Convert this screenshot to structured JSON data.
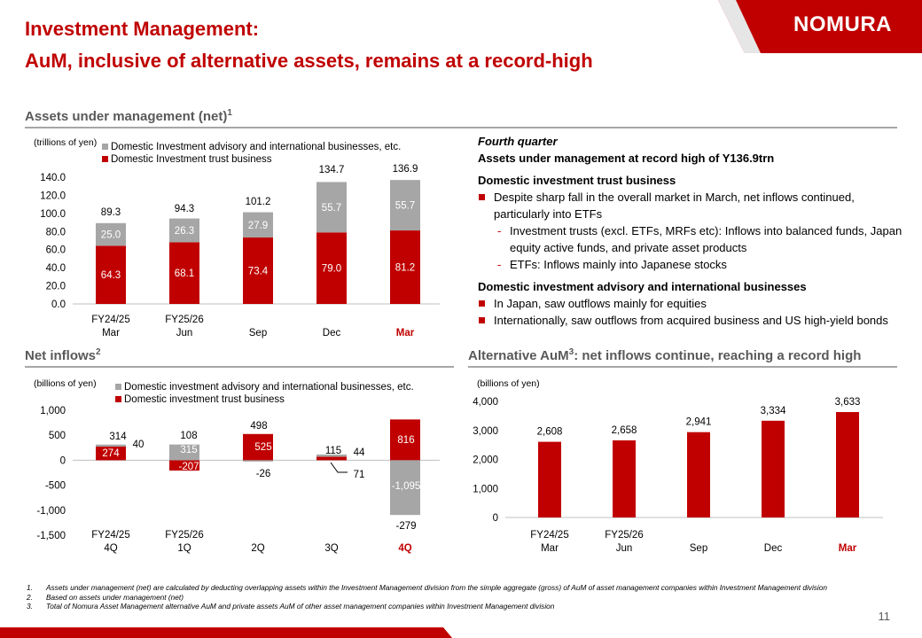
{
  "header": {
    "title_line1": "Investment Management:",
    "title_line2": "AuM, inclusive of alternative assets, remains at a record-high",
    "logo_text": "NOMURA",
    "brand_color": "#c00000"
  },
  "sections": {
    "aum_title": "Assets under management (net)",
    "aum_sup": "1",
    "inflows_title": "Net inflows",
    "inflows_sup": "2",
    "alt_title_pre": "Alternative AuM",
    "alt_sup": "3",
    "alt_title_post": ": net inflows continue, reaching a record high"
  },
  "commentary": {
    "quarter": "Fourth quarter",
    "headline": "Assets under management at record high of Y136.9trn",
    "h1": "Domestic investment trust business",
    "b1": "Despite sharp fall in the overall market in March, net inflows continued, particularly into ETFs",
    "s1": "Investment trusts (excl. ETFs, MRFs etc): Inflows into balanced funds, Japan equity active funds, and private asset products",
    "s2": "ETFs: Inflows mainly into Japanese stocks",
    "h2": "Domestic investment advisory and international businesses",
    "b2": "In Japan, saw outflows mainly for equities",
    "b3": "Internationally, saw outflows from acquired business and US high-yield bonds"
  },
  "footnotes": [
    {
      "n": "1.",
      "text": "Assets under management (net) are calculated by deducting overlapping assets within the Investment Management division from the simple aggregate (gross) of AuM of asset management companies within Investment Management division"
    },
    {
      "n": "2.",
      "text": "Based on assets under management (net)"
    },
    {
      "n": "3.",
      "text": "Total of Nomura Asset Management alternative AuM and private assets AuM of other asset management companies within Investment Management division"
    }
  ],
  "page_number": "11",
  "colors": {
    "red": "#c00000",
    "gray": "#a6a6a6",
    "text_gray": "#595959"
  },
  "chart_data": [
    {
      "type": "bar",
      "stacked": true,
      "unit_label": "(trillions of yen)",
      "categories": [
        [
          "FY24/25",
          "Mar"
        ],
        [
          "FY25/26",
          "Jun"
        ],
        [
          "",
          "Sep"
        ],
        [
          "",
          "Dec"
        ],
        [
          "",
          "Mar"
        ]
      ],
      "highlight_last_category": true,
      "series": [
        {
          "name": "Domestic Investment trust business",
          "color": "#c00000",
          "values": [
            64.3,
            68.1,
            73.4,
            79.0,
            81.2
          ],
          "labels": [
            "64.3",
            "68.1",
            "73.4",
            "79.0",
            "81.2"
          ]
        },
        {
          "name": "Domestic Investment advisory and international businesses, etc.",
          "color": "#a6a6a6",
          "values": [
            25.0,
            26.3,
            27.9,
            55.7,
            55.7
          ],
          "labels": [
            "25.0",
            "26.3",
            "27.9",
            "55.7",
            "55.7"
          ]
        }
      ],
      "totals": [
        89.3,
        94.3,
        101.2,
        134.7,
        136.9
      ],
      "total_labels": [
        "89.3",
        "94.3",
        "101.2",
        "134.7",
        "136.9"
      ],
      "ylim": [
        0,
        140
      ],
      "yticks": [
        "0.0",
        "20.0",
        "40.0",
        "60.0",
        "80.0",
        "100.0",
        "120.0",
        "140.0"
      ],
      "legend_position": "top"
    },
    {
      "type": "bar",
      "stacked": true,
      "unit_label": "(billions of yen)",
      "categories": [
        [
          "FY24/25",
          "4Q"
        ],
        [
          "FY25/26",
          "1Q"
        ],
        [
          "",
          "2Q"
        ],
        [
          "",
          "3Q"
        ],
        [
          "",
          "4Q"
        ]
      ],
      "highlight_last_category": true,
      "series": [
        {
          "name": "Domestic investment trust business",
          "color": "#c00000",
          "values": [
            274,
            -207,
            525,
            71,
            816
          ],
          "labels": [
            "274",
            "-207",
            "525",
            "71",
            "816"
          ]
        },
        {
          "name": "Domestic investment advisory and international businesses, etc.",
          "color": "#a6a6a6",
          "values": [
            40,
            315,
            -26,
            44,
            -1095
          ],
          "labels": [
            "40",
            "315",
            "-26",
            "44",
            "-1,095"
          ]
        }
      ],
      "totals": [
        314,
        108,
        498,
        115,
        -279
      ],
      "total_labels": [
        "314",
        "108",
        "498",
        "115",
        "-279"
      ],
      "ylim": [
        -1500,
        1000
      ],
      "yticks": [
        "-1,500",
        "-1,000",
        "-500",
        "0",
        "500",
        "1,000"
      ],
      "legend_position": "top"
    },
    {
      "type": "bar",
      "unit_label": "(billions of yen)",
      "categories": [
        [
          "FY24/25",
          "Mar"
        ],
        [
          "FY25/26",
          "Jun"
        ],
        [
          "",
          "Sep"
        ],
        [
          "",
          "Dec"
        ],
        [
          "",
          "Mar"
        ]
      ],
      "highlight_last_category": true,
      "series": [
        {
          "color": "#c00000",
          "values": [
            2608,
            2658,
            2941,
            3334,
            3633
          ],
          "labels": [
            "2,608",
            "2,658",
            "2,941",
            "3,334",
            "3,633"
          ]
        }
      ],
      "ylim": [
        0,
        4000
      ],
      "yticks": [
        "0",
        "1,000",
        "2,000",
        "3,000",
        "4,000"
      ]
    }
  ]
}
